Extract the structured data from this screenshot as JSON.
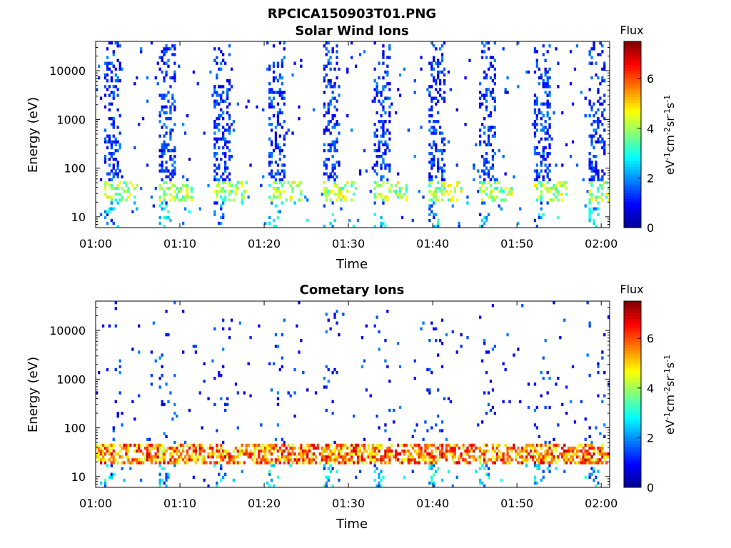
{
  "figure_title": "RPCICA150903T01.PNG",
  "colors": {
    "colormap": [
      "#00008f",
      "#0000ff",
      "#0080ff",
      "#00ffff",
      "#80ff80",
      "#ffff00",
      "#ff8000",
      "#ff0000",
      "#800000"
    ]
  },
  "chart_data": [
    {
      "type": "heatmap",
      "title": "Solar Wind Ions",
      "xlabel": "Time",
      "ylabel": "Energy (eV)",
      "x_ticks": [
        "01:00",
        "01:10",
        "01:20",
        "01:30",
        "01:40",
        "01:50",
        "02:00"
      ],
      "xlim": [
        "01:00",
        "02:01"
      ],
      "y_scale": "log",
      "y_ticks": [
        "10",
        "100",
        "1000",
        "10000"
      ],
      "ylim": [
        6,
        40000
      ],
      "colorbar": {
        "title": "Flux",
        "label": "eV-1cm-2sr-1s-1",
        "ticks": [
          "0",
          "2",
          "4",
          "6"
        ],
        "range": [
          0,
          7.5
        ]
      },
      "sweep_start_minutes": [
        1,
        7.5,
        14,
        20.5,
        27,
        33,
        39.5,
        45.5,
        52,
        58.5
      ],
      "peak_energy_eV": 30,
      "peak_flux": 5
    },
    {
      "type": "heatmap",
      "title": "Cometary Ions",
      "xlabel": "Time",
      "ylabel": "Energy (eV)",
      "x_ticks": [
        "01:00",
        "01:10",
        "01:20",
        "01:30",
        "01:40",
        "01:50",
        "02:00"
      ],
      "xlim": [
        "01:00",
        "02:01"
      ],
      "y_scale": "log",
      "y_ticks": [
        "10",
        "100",
        "1000",
        "10000"
      ],
      "ylim": [
        6,
        40000
      ],
      "colorbar": {
        "title": "Flux",
        "label": "eV-1cm-2sr-1s-1",
        "ticks": [
          "0",
          "2",
          "4",
          "6"
        ],
        "range": [
          0,
          7.5
        ]
      },
      "sweep_start_minutes": [
        1,
        7.5,
        14,
        20.5,
        27,
        33,
        39.5,
        45.5,
        52,
        58.5
      ],
      "peak_energy_eV": 28,
      "peak_flux": 7
    }
  ]
}
